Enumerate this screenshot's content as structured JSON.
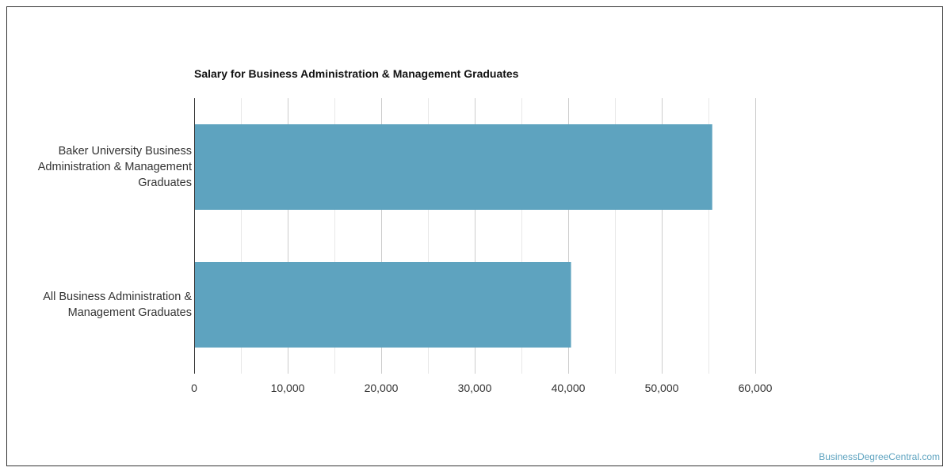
{
  "chart_data": {
    "type": "bar",
    "orientation": "horizontal",
    "title": "Salary for Business Administration & Management Graduates",
    "categories": [
      "Baker University Business Administration & Management Graduates",
      "All Business Administration & Management Graduates"
    ],
    "values": [
      55400,
      40300
    ],
    "xlim": [
      0,
      60000
    ],
    "x_ticks": [
      0,
      10000,
      20000,
      30000,
      40000,
      50000,
      60000
    ],
    "x_tick_labels": [
      "0",
      "10,000",
      "20,000",
      "30,000",
      "40,000",
      "50,000",
      "60,000"
    ],
    "xlabel": "",
    "ylabel": "",
    "grid": true,
    "bar_color": "#5ea3bf",
    "grid_color": "#dddddd",
    "axis_color": "#333333"
  },
  "watermark": "BusinessDegreeCentral.com"
}
